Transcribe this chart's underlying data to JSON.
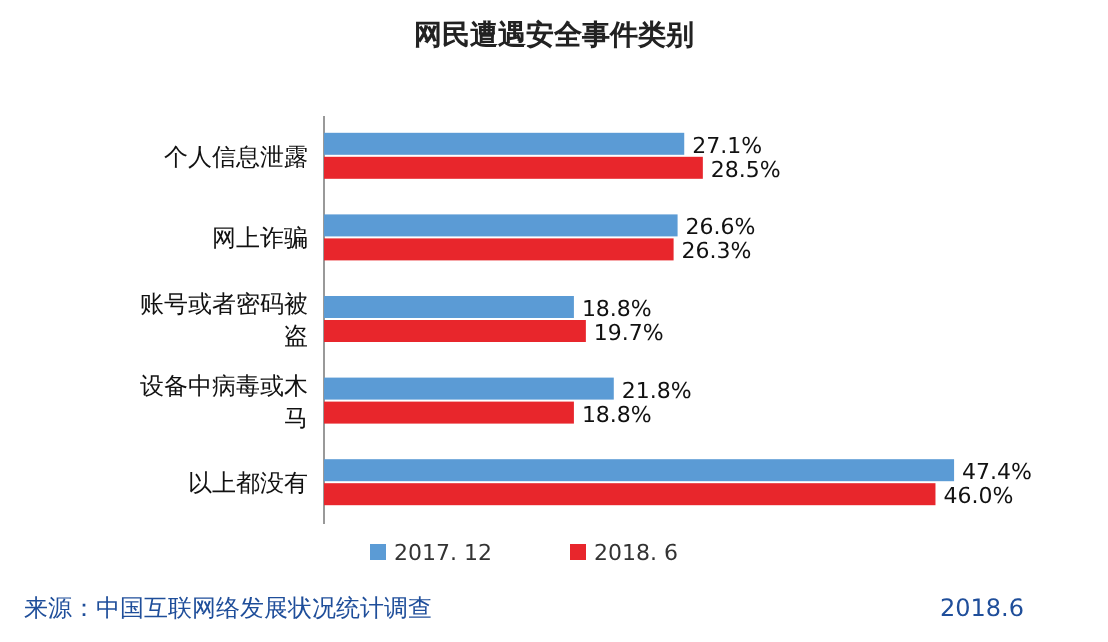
{
  "chart_data": {
    "type": "bar",
    "orientation": "horizontal",
    "title": "网民遭遇安全事件类别",
    "categories": [
      "个人信息泄露",
      "网上诈骗",
      "账号或者密码被盗",
      "设备中病毒或木马",
      "以上都没有"
    ],
    "series": [
      {
        "name": "2017. 12",
        "color": "#5b9bd5",
        "values": [
          27.1,
          26.6,
          18.8,
          21.8,
          47.4
        ],
        "value_labels": [
          "27.1%",
          "26.6%",
          "18.8%",
          "21.8%",
          "47.4%"
        ]
      },
      {
        "name": "2018. 6",
        "color": "#e8262c",
        "values": [
          28.5,
          26.3,
          19.7,
          18.8,
          46.0
        ],
        "value_labels": [
          "28.5%",
          "26.3%",
          "19.7%",
          "18.8%",
          "46.0%"
        ]
      }
    ],
    "legend": "bottom",
    "annotations": [
      "来源：中国互联网络发展状况统计调查",
      "2018.6"
    ]
  }
}
